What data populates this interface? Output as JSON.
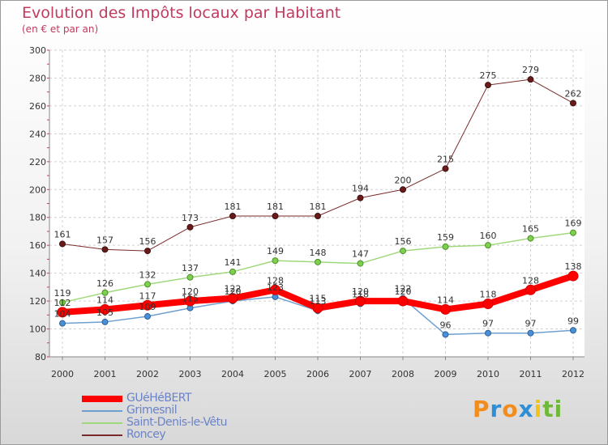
{
  "header": {
    "title": "Evolution des Impôts locaux par Habitant",
    "subtitle": "(en € et par an)"
  },
  "brand": {
    "name": "Proxiti",
    "letters": [
      {
        "ch": "P",
        "color": "#f28c1c"
      },
      {
        "ch": "r",
        "color": "#2d8fd8"
      },
      {
        "ch": "o",
        "color": "#f28c1c"
      },
      {
        "ch": "x",
        "color": "#2d8fd8"
      },
      {
        "ch": "i",
        "color": "#f0c419"
      },
      {
        "ch": "t",
        "color": "#6fb83a"
      },
      {
        "ch": "i",
        "color": "#6fb83a"
      }
    ]
  },
  "chart_data": {
    "type": "line",
    "title": "Evolution des Impôts locaux par Habitant",
    "subtitle": "(en € et par an)",
    "x": [
      2000,
      2001,
      2002,
      2003,
      2004,
      2005,
      2006,
      2007,
      2008,
      2009,
      2010,
      2011,
      2012
    ],
    "ylim": [
      80,
      300
    ],
    "yticks": [
      80,
      100,
      120,
      140,
      160,
      180,
      200,
      220,
      240,
      260,
      280,
      300
    ],
    "grid": true,
    "legend_position": "bottom-left",
    "series": [
      {
        "name": "GUéHéBERT",
        "color": "#ff0000",
        "values": [
          112,
          114,
          117,
          120,
          122,
          128,
          115,
          120,
          120,
          114,
          118,
          128,
          138
        ]
      },
      {
        "name": "Grimesnil",
        "color": "#6f9fcf",
        "values": [
          104,
          105,
          109,
          115,
          120,
          123,
          113,
          118,
          122,
          96,
          97,
          97,
          99
        ]
      },
      {
        "name": "Saint-Denis-le-Vêtu",
        "color": "#9fd87a",
        "values": [
          119,
          126,
          132,
          137,
          141,
          149,
          148,
          147,
          156,
          159,
          160,
          165,
          169
        ]
      },
      {
        "name": "Roncey",
        "color": "#7a2a2a",
        "values": [
          161,
          157,
          156,
          173,
          181,
          181,
          181,
          194,
          200,
          215,
          275,
          279,
          262
        ]
      }
    ]
  }
}
